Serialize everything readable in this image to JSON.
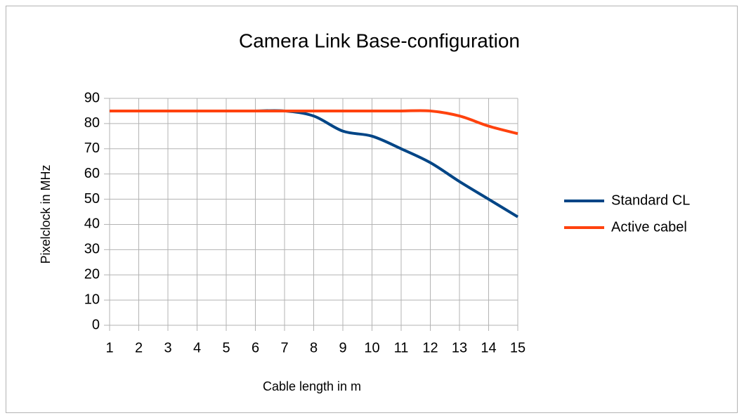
{
  "chart_data": {
    "type": "line",
    "title": "Camera Link Base-configuration",
    "x_label": "Cable length in m",
    "y_label": "Pixelclock in MHz",
    "x": [
      1,
      2,
      3,
      4,
      5,
      6,
      7,
      8,
      9,
      10,
      11,
      12,
      13,
      14,
      15
    ],
    "series": [
      {
        "name": "Standard CL",
        "color": "#004586",
        "values": [
          85,
          85,
          85,
          85,
          85,
          85,
          85,
          83,
          77,
          75,
          70,
          64.5,
          57,
          50,
          43
        ]
      },
      {
        "name": "Active cabel",
        "color": "#ff420e",
        "values": [
          85,
          85,
          85,
          85,
          85,
          85,
          85,
          85,
          85,
          85,
          85,
          85,
          83,
          79,
          76
        ]
      }
    ],
    "xlim": [
      1,
      15
    ],
    "xticks": [
      1,
      2,
      3,
      4,
      5,
      6,
      7,
      8,
      9,
      10,
      11,
      12,
      13,
      14,
      15
    ],
    "ylim": [
      0,
      90
    ],
    "yticks": [
      0,
      10,
      20,
      30,
      40,
      50,
      60,
      70,
      80,
      90
    ],
    "grid": true,
    "legend": "right"
  }
}
